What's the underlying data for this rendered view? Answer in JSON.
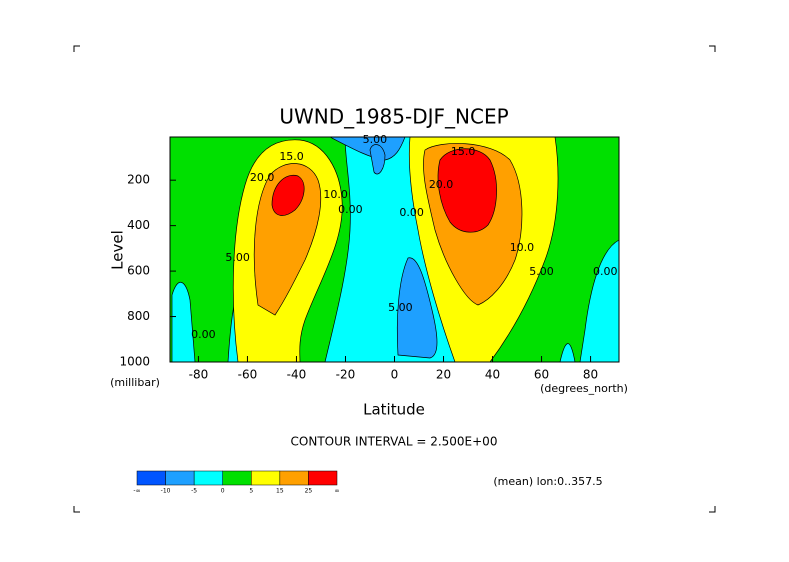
{
  "chart_data": {
    "type": "contour",
    "title": "UWND_1985-DJF_NCEP",
    "xlabel": "Latitude",
    "ylabel": "Level",
    "x_unit": "(degrees_north)",
    "y_unit": "(millibar)",
    "xlim": [
      -91.6,
      91.6
    ],
    "xticks": [
      -80,
      -60,
      -40,
      -20,
      0,
      20,
      40,
      60,
      80
    ],
    "ylim": [
      1000,
      10
    ],
    "yticks": [
      200,
      400,
      600,
      800,
      1000
    ],
    "grid": false,
    "annotations": [
      "CONTOUR INTERVAL = 2.500E+00",
      "(mean) lon:0..357.5"
    ],
    "colorbar": {
      "colors": [
        "#0055ff",
        "#1ea0ff",
        "#00ffff",
        "#00e000",
        "#ffff00",
        "#ffa000",
        "#ff0000"
      ],
      "end_labels": [
        "-∞",
        "∞"
      ],
      "boundaries": [
        -10,
        -5,
        0,
        5,
        15,
        25
      ]
    },
    "contour_labels": [
      {
        "label": "15.0",
        "x": -42,
        "y": 99
      },
      {
        "label": "20.0",
        "x": -54,
        "y": 191
      },
      {
        "label": "10.0",
        "x": -24,
        "y": 266
      },
      {
        "label": "10.0",
        "x": 52,
        "y": 499
      },
      {
        "label": "5.00",
        "x": -64,
        "y": 543
      },
      {
        "label": "5.00",
        "x": 2.4,
        "y": 763
      },
      {
        "label": "5.00",
        "x": 60,
        "y": 604
      },
      {
        "label": "0.00",
        "x": -18,
        "y": 332
      },
      {
        "label": "0.00",
        "x": 7,
        "y": 345
      },
      {
        "label": "0.00",
        "x": 86,
        "y": 604
      },
      {
        "label": "0.00",
        "x": -78,
        "y": 881
      },
      {
        "label": "5.00",
        "x": -8,
        "y": 24
      },
      {
        "label": "20.0",
        "x": 19,
        "y": 222
      },
      {
        "label": "15.0",
        "x": 28,
        "y": 77
      }
    ]
  }
}
